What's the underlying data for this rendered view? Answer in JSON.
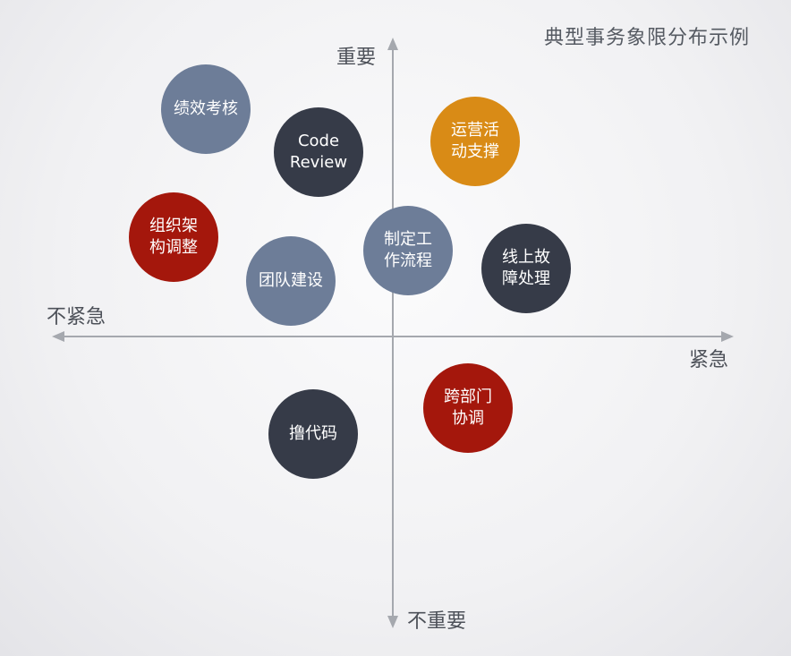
{
  "title": "典型事务象限分布示例",
  "axes": {
    "top": "重要",
    "bottom": "不重要",
    "left": "不紧急",
    "right": "紧急"
  },
  "colors": {
    "grey": "#6d7d98",
    "dark": "#363b48",
    "red": "#a4170c",
    "orange": "#d98b16"
  },
  "items": {
    "performance": "绩效考核",
    "code_review": "Code\nReview",
    "ops_support": "运营活\n动支撑",
    "org_structure": "组织架\n构调整",
    "workflow": "制定工\n作流程",
    "team_building": "团队建设",
    "online_incident": "线上故\n障处理",
    "cross_dept": "跨部门\n协调",
    "coding": "撸代码"
  }
}
